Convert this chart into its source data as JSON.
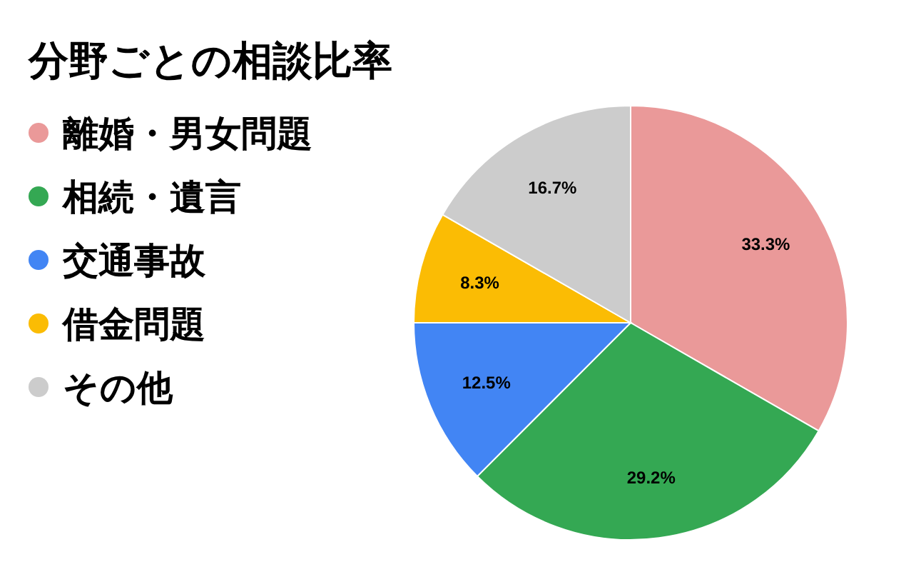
{
  "chart_data": {
    "type": "pie",
    "title": "分野ごとの相談比率",
    "categories": [
      "離婚・男女問題",
      "相続・遺言",
      "交通事故",
      "借金問題",
      "その他"
    ],
    "values": [
      33.3,
      29.2,
      12.5,
      8.3,
      16.7
    ],
    "value_labels": [
      "33.3%",
      "29.2%",
      "12.5%",
      "8.3%",
      "16.7%"
    ],
    "colors": [
      "#ea9999",
      "#34a853",
      "#4285f4",
      "#fbbc04",
      "#cccccc"
    ],
    "legend": "left"
  }
}
